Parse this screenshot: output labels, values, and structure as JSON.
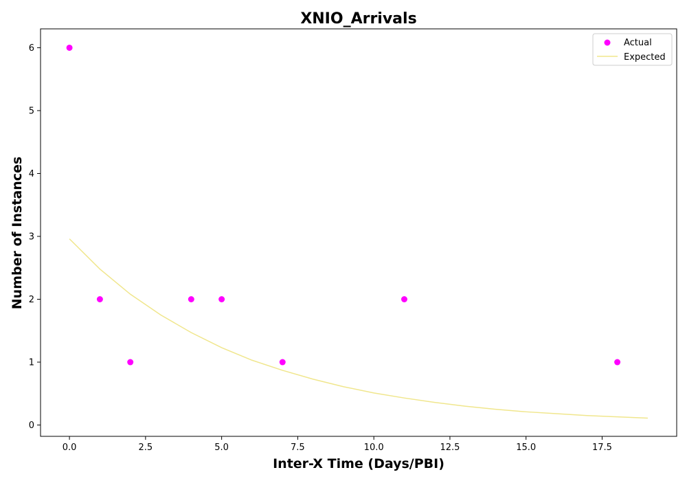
{
  "chart_data": {
    "type": "scatter",
    "title": "XNIO_Arrivals",
    "xlabel": "Inter-X Time (Days/PBI)",
    "ylabel": "Number of Instances",
    "xlim": [
      -0.95,
      19.95
    ],
    "ylim": [
      -0.18,
      6.3
    ],
    "xticks": [
      0.0,
      2.5,
      5.0,
      7.5,
      10.0,
      12.5,
      15.0,
      17.5
    ],
    "xtick_labels": [
      "0.0",
      "2.5",
      "5.0",
      "7.5",
      "10.0",
      "12.5",
      "15.0",
      "17.5"
    ],
    "yticks": [
      0,
      1,
      2,
      3,
      4,
      5,
      6
    ],
    "ytick_labels": [
      "0",
      "1",
      "2",
      "3",
      "4",
      "5",
      "6"
    ],
    "grid": false,
    "legend_position": "top-right",
    "series": [
      {
        "name": "Actual",
        "kind": "scatter",
        "color": "#ff00ff",
        "x": [
          0,
          1,
          2,
          4,
          5,
          7,
          11,
          18
        ],
        "y": [
          6,
          2,
          1,
          2,
          2,
          1,
          2,
          1
        ]
      },
      {
        "name": "Expected",
        "kind": "line",
        "color": "#f0e68c",
        "x": [
          0,
          1,
          2,
          3,
          4,
          5,
          6,
          7,
          8,
          9,
          10,
          11,
          12,
          13,
          14,
          15,
          16,
          17,
          18,
          19
        ],
        "y": [
          2.96,
          2.48,
          2.08,
          1.75,
          1.47,
          1.23,
          1.03,
          0.87,
          0.73,
          0.61,
          0.51,
          0.43,
          0.36,
          0.3,
          0.25,
          0.21,
          0.18,
          0.15,
          0.13,
          0.11
        ]
      }
    ]
  }
}
